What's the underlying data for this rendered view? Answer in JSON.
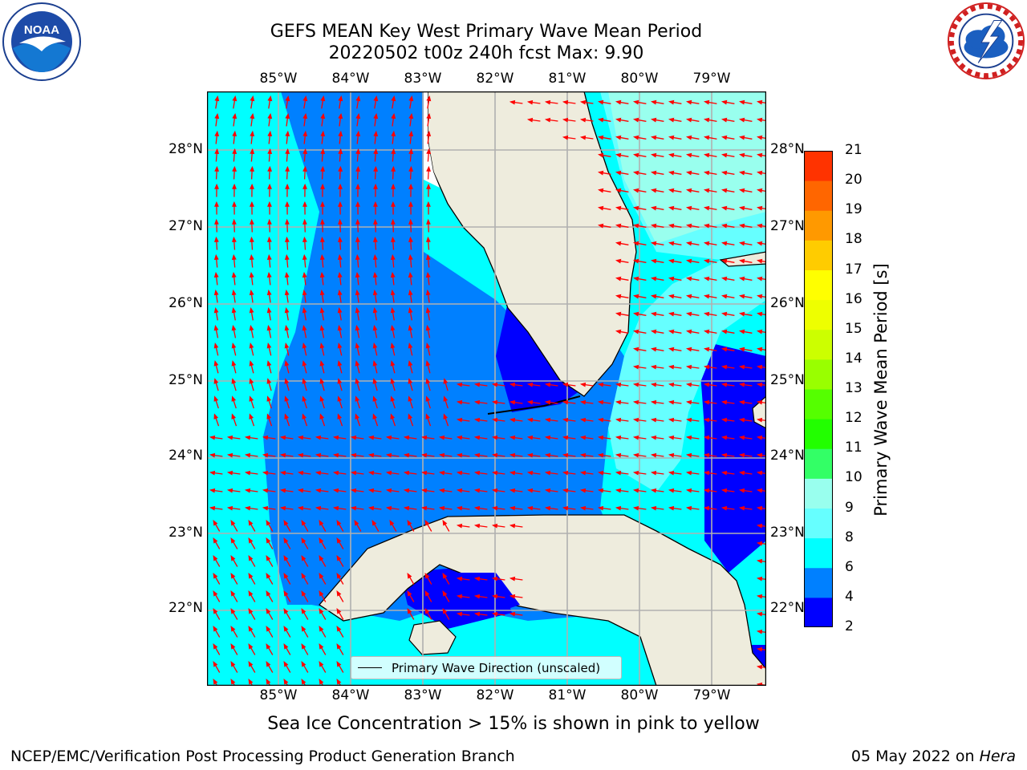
{
  "title": {
    "line1": "GEFS MEAN Key West Primary Wave Mean Period",
    "line2": "20220502 t00z 240h fcst   Max: 9.90"
  },
  "logos": {
    "noaa": {
      "text": "NOAA",
      "ring": "NATIONAL OCEANIC AND ATMOSPHERIC ADMINISTRATION · U.S. DEPARTMENT OF COMMERCE"
    },
    "nws": {
      "ring": "NATIONAL WEATHER SERVICE"
    }
  },
  "map": {
    "lon_labels": [
      "85°W",
      "84°W",
      "83°W",
      "82°W",
      "81°W",
      "80°W",
      "79°W"
    ],
    "lat_labels": [
      "28°N",
      "27°N",
      "26°N",
      "25°N",
      "24°N",
      "23°N",
      "22°N"
    ],
    "legend_label": "Primary Wave Direction (unscaled)",
    "colors": {
      "land": "#eeecdd",
      "band_2_4": "#0000ff",
      "band_4_6": "#0080ff",
      "band_6_8": "#00ffff",
      "band_8_9": "#66ffff",
      "band_9_10": "#99ffee",
      "arrow": "#ff0000",
      "grid": "#b0b0b0"
    }
  },
  "colorbar": {
    "label": "Primary Wave Mean Period [s]",
    "ticks": [
      "2",
      "4",
      "6",
      "8",
      "9",
      "10",
      "11",
      "12",
      "13",
      "14",
      "15",
      "16",
      "17",
      "18",
      "19",
      "20",
      "21"
    ],
    "colors": [
      "#0000ff",
      "#0080ff",
      "#00ffff",
      "#66ffff",
      "#99ffee",
      "#33ff66",
      "#22ff00",
      "#55ff00",
      "#99ff00",
      "#ccff00",
      "#eeff00",
      "#ffff00",
      "#ffcc00",
      "#ff9900",
      "#ff6600",
      "#ff3300",
      "#ff0000"
    ]
  },
  "note": "Sea Ice Concentration > 15% is shown in pink to yellow",
  "footer": {
    "left": "NCEP/EMC/Verification Post Processing Product Generation Branch",
    "right_date": "05 May 2022 on",
    "right_host": "Hera"
  }
}
